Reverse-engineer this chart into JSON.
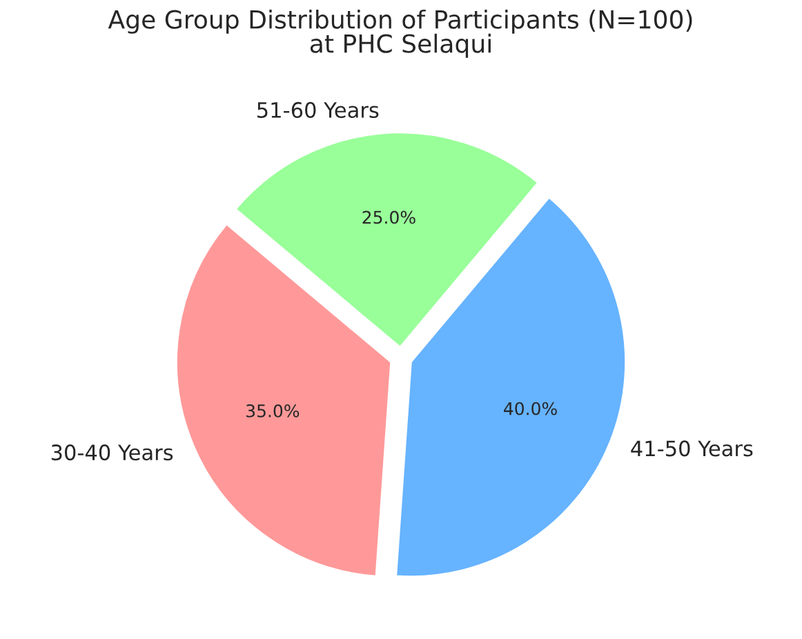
{
  "chart_data": {
    "type": "pie",
    "title": "Age Group Distribution of Participants (N=100)\nat PHC Selaqui",
    "categories": [
      "30-40 Years",
      "41-50 Years",
      "51-60 Years"
    ],
    "values": [
      35,
      40,
      25
    ],
    "colors": [
      "#ff9999",
      "#66b3ff",
      "#99ff99"
    ],
    "value_labels": [
      "35.0%",
      "40.0%",
      "25.0%"
    ]
  }
}
